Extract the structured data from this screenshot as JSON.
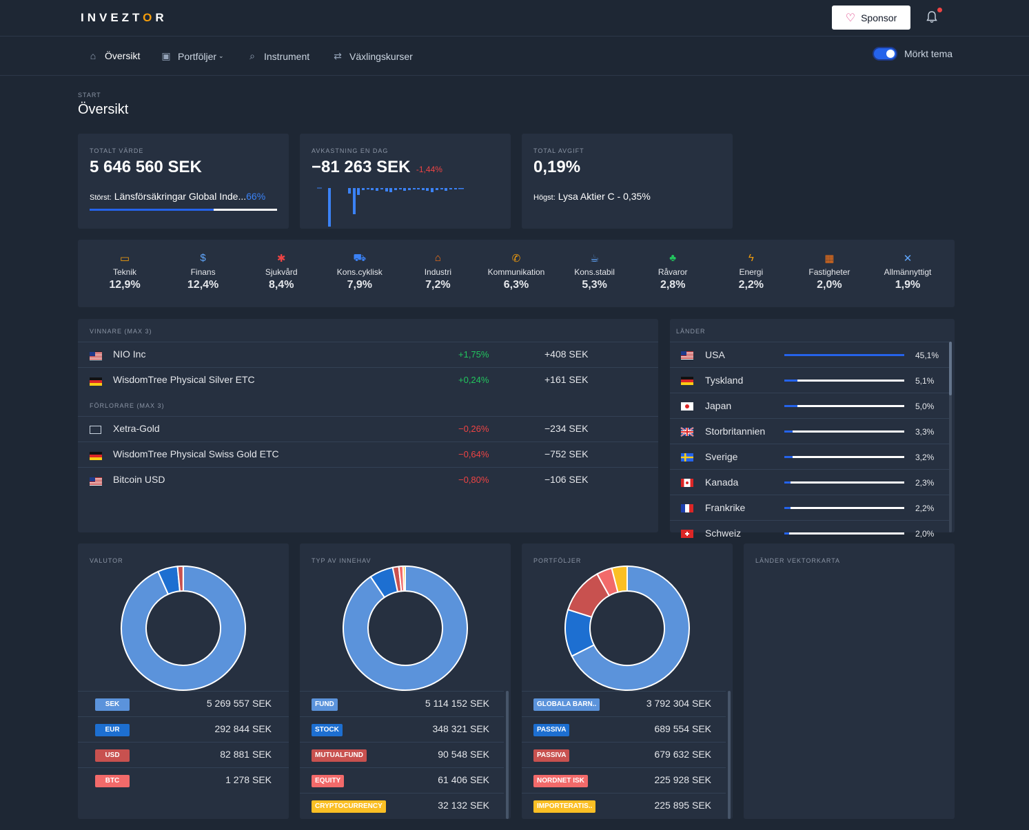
{
  "header": {
    "logo": "INVEZTOR",
    "sponsor_label": "Sponsor"
  },
  "nav": {
    "items": [
      {
        "label": "Översikt"
      },
      {
        "label": "Portföljer"
      },
      {
        "label": "Instrument"
      },
      {
        "label": "Växlingskurser"
      }
    ],
    "theme_label": "Mörkt tema"
  },
  "breadcrumb": "START",
  "page_title": "Översikt",
  "cards": {
    "total": {
      "label": "TOTALT VÄRDE",
      "value": "5 646 560 SEK",
      "largest_prefix": "Störst:",
      "largest_name": "Länsförsäkringar Global Inde...",
      "largest_pct": "66%",
      "largest_fraction": 0.66
    },
    "return": {
      "label": "AVKASTNING EN DAG",
      "value": "−81 263 SEK",
      "pct": "-1,44%"
    },
    "fee": {
      "label": "TOTAL AVGIFT",
      "value": "0,19%",
      "highest_prefix": "Högst:",
      "highest_text": "Lysa Aktier C - 0,35%"
    }
  },
  "sectors": [
    {
      "name": "Teknik",
      "value": "12,9%",
      "color": "#f59e0b",
      "icon": "laptop-icon",
      "glyph": "▭"
    },
    {
      "name": "Finans",
      "value": "12,4%",
      "color": "#60a5fa",
      "icon": "finance-icon",
      "glyph": "$"
    },
    {
      "name": "Sjukvård",
      "value": "8,4%",
      "color": "#ef4444",
      "icon": "health-icon",
      "glyph": "✱"
    },
    {
      "name": "Kons.cyklisk",
      "value": "7,9%",
      "color": "#3b82f6",
      "icon": "car-icon",
      "glyph": "⛟"
    },
    {
      "name": "Industri",
      "value": "7,2%",
      "color": "#f97316",
      "icon": "factory-icon",
      "glyph": "⌂"
    },
    {
      "name": "Kommunikation",
      "value": "6,3%",
      "color": "#f59e0b",
      "icon": "satellite-icon",
      "glyph": "✆"
    },
    {
      "name": "Kons.stabil",
      "value": "5,3%",
      "color": "#60a5fa",
      "icon": "coffee-icon",
      "glyph": "☕"
    },
    {
      "name": "Råvaror",
      "value": "2,8%",
      "color": "#22c55e",
      "icon": "tree-icon",
      "glyph": "♣"
    },
    {
      "name": "Energi",
      "value": "2,2%",
      "color": "#f59e0b",
      "icon": "lightning-icon",
      "glyph": "ϟ"
    },
    {
      "name": "Fastigheter",
      "value": "2,0%",
      "color": "#f97316",
      "icon": "building-icon",
      "glyph": "▦"
    },
    {
      "name": "Allmännyttigt",
      "value": "1,9%",
      "color": "#60a5fa",
      "icon": "tools-icon",
      "glyph": "✕"
    }
  ],
  "winners": {
    "label": "VINNARE (MAX 3)",
    "rows": [
      {
        "name": "NIO Inc",
        "pct": "+1,75%",
        "amount": "+408 SEK",
        "flag": "us"
      },
      {
        "name": "WisdomTree Physical Silver ETC",
        "pct": "+0,24%",
        "amount": "+161 SEK",
        "flag": "de"
      }
    ]
  },
  "losers": {
    "label": "FÖRLORARE (MAX 3)",
    "rows": [
      {
        "name": "Xetra-Gold",
        "pct": "−0,26%",
        "amount": "−234 SEK",
        "flag": "none"
      },
      {
        "name": "WisdomTree Physical Swiss Gold ETC",
        "pct": "−0,64%",
        "amount": "−752 SEK",
        "flag": "de"
      },
      {
        "name": "Bitcoin USD",
        "pct": "−0,80%",
        "amount": "−106 SEK",
        "flag": "us"
      }
    ]
  },
  "countries": {
    "label": "LÄNDER",
    "rows": [
      {
        "name": "USA",
        "pct": "45,1%",
        "fraction": 1.0,
        "flag": "us"
      },
      {
        "name": "Tyskland",
        "pct": "5,1%",
        "fraction": 0.11,
        "flag": "de"
      },
      {
        "name": "Japan",
        "pct": "5,0%",
        "fraction": 0.11,
        "flag": "jp"
      },
      {
        "name": "Storbritannien",
        "pct": "3,3%",
        "fraction": 0.07,
        "flag": "gb"
      },
      {
        "name": "Sverige",
        "pct": "3,2%",
        "fraction": 0.07,
        "flag": "se"
      },
      {
        "name": "Kanada",
        "pct": "2,3%",
        "fraction": 0.05,
        "flag": "ca"
      },
      {
        "name": "Frankrike",
        "pct": "2,2%",
        "fraction": 0.05,
        "flag": "fr"
      },
      {
        "name": "Schweiz",
        "pct": "2,0%",
        "fraction": 0.04,
        "flag": "ch"
      }
    ]
  },
  "valutor": {
    "label": "VALUTOR",
    "rows": [
      {
        "tag": "SEK",
        "value": "5 269 557 SEK",
        "color": "#5b93db"
      },
      {
        "tag": "EUR",
        "value": "292 844 SEK",
        "color": "#1d6fd1"
      },
      {
        "tag": "USD",
        "value": "82 881 SEK",
        "color": "#c8514f"
      },
      {
        "tag": "BTC",
        "value": "1 278 SEK",
        "color": "#f26a6a"
      }
    ]
  },
  "innehav": {
    "label": "TYP AV INNEHAV",
    "rows": [
      {
        "tag": "FUND",
        "value": "5 114 152 SEK",
        "color": "#5b93db"
      },
      {
        "tag": "STOCK",
        "value": "348 321 SEK",
        "color": "#1d6fd1"
      },
      {
        "tag": "MUTUALFUND",
        "value": "90 548 SEK",
        "color": "#c8514f"
      },
      {
        "tag": "EQUITY",
        "value": "61 406 SEK",
        "color": "#f26a6a"
      },
      {
        "tag": "CRYPTOCURRENCY",
        "value": "32 132 SEK",
        "color": "#fbbf24"
      }
    ]
  },
  "portfoljer": {
    "label": "PORTFÖLJER",
    "rows": [
      {
        "tag": "GLOBALA BARN..",
        "value": "3 792 304 SEK",
        "color": "#5b93db"
      },
      {
        "tag": "PASSIVA",
        "value": "689 554 SEK",
        "color": "#1d6fd1"
      },
      {
        "tag": "PASSIVA",
        "value": "679 632 SEK",
        "color": "#c8514f"
      },
      {
        "tag": "NORDNET ISK",
        "value": "225 928 SEK",
        "color": "#f26a6a"
      },
      {
        "tag": "IMPORTERATIS..",
        "value": "225 895 SEK",
        "color": "#fbbf24"
      }
    ]
  },
  "map": {
    "label": "LÄNDER VEKTORKARTA"
  }
}
